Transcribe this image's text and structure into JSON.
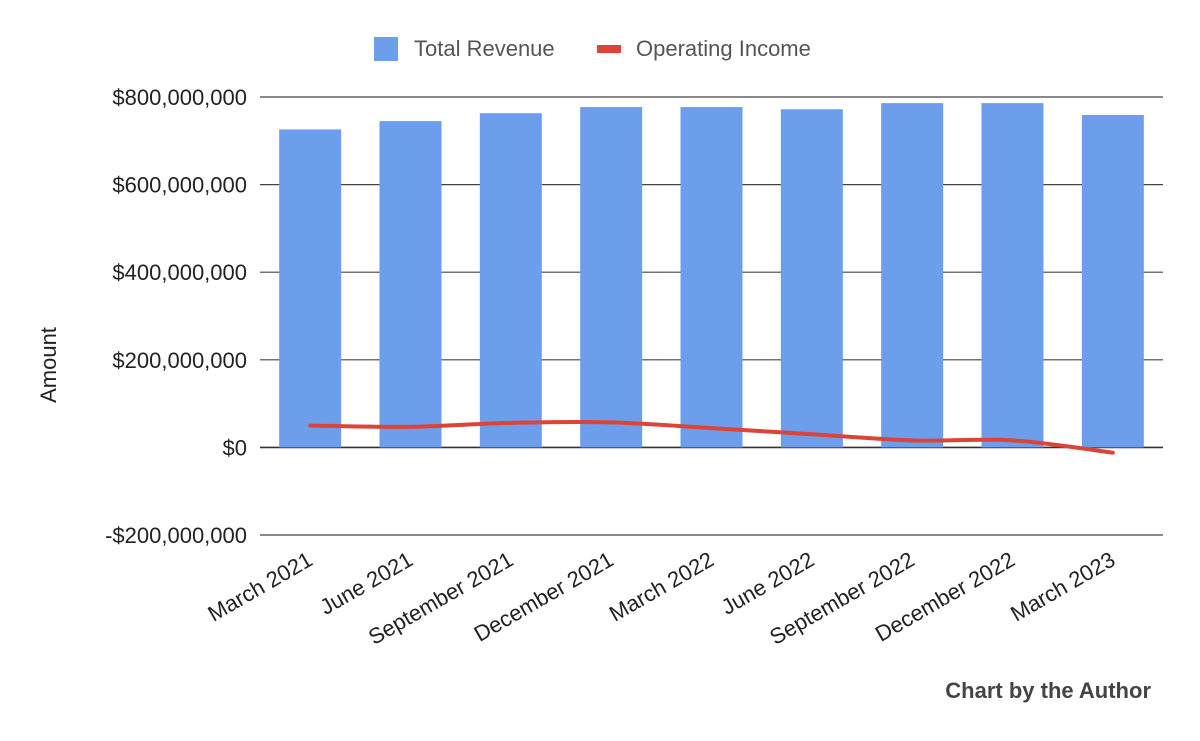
{
  "chart_data": {
    "type": "bar",
    "ylabel": "Amount",
    "xlabel": "",
    "ylim": [
      -200000000,
      800000000
    ],
    "yticks": [
      -200000000,
      0,
      200000000,
      400000000,
      600000000,
      800000000
    ],
    "ytick_labels": [
      "-$200,000,000",
      "$0",
      "$200,000,000",
      "$400,000,000",
      "$600,000,000",
      "$800,000,000"
    ],
    "categories": [
      "March 2021",
      "June 2021",
      "September 2021",
      "December 2021",
      "March 2022",
      "June 2022",
      "September 2022",
      "December 2022",
      "March 2023"
    ],
    "grid": true,
    "legend_position": "top-center",
    "series": [
      {
        "name": "Total Revenue",
        "type": "bar",
        "color": "#6d9eeb",
        "values": [
          726000000,
          745000000,
          763000000,
          777000000,
          777000000,
          772000000,
          786000000,
          786000000,
          759000000
        ]
      },
      {
        "name": "Operating Income",
        "type": "line",
        "color": "#db4437",
        "values": [
          50000000,
          47000000,
          56000000,
          57000000,
          44000000,
          30000000,
          16000000,
          16000000,
          -12000000
        ]
      }
    ],
    "annotation": "Chart by the Author"
  }
}
